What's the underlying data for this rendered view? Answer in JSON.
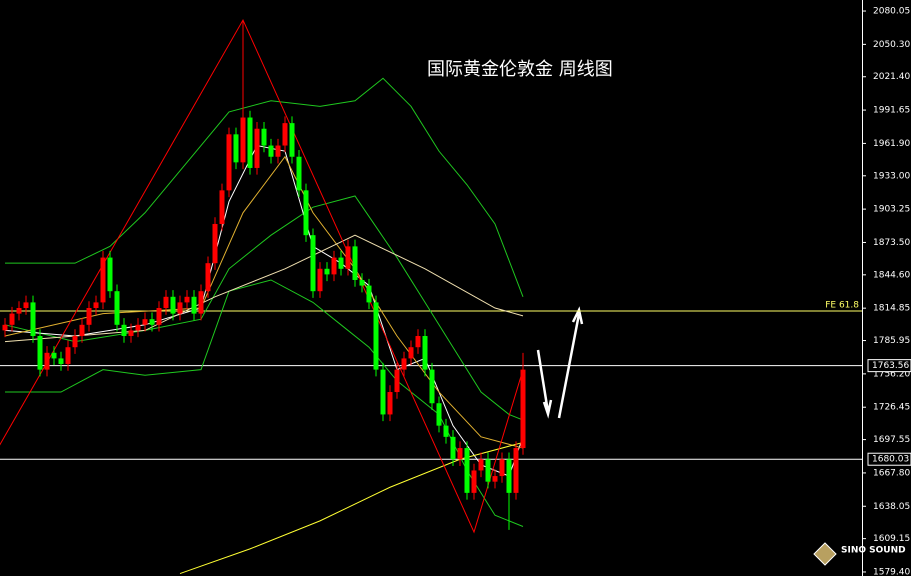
{
  "chart_data": {
    "type": "candlestick",
    "title": "国际黄金伦敦金 周线图",
    "logo": "SINO SOUND",
    "ylim": [
      1575.8,
      2089.9
    ],
    "yticks": [
      2080.05,
      {
        "value": 2050.3,
        "label": "2050.30"
      },
      {
        "value": 2021.4,
        "label": "2021.40"
      },
      1991.65,
      {
        "value": 1961.9,
        "label": "1961.90"
      },
      {
        "value": 1933,
        "label": "1933.00"
      },
      1903.25,
      {
        "value": 1873.5,
        "label": "1873.50"
      },
      {
        "value": 1844.6,
        "label": "1844.60"
      },
      1814.85,
      1785.95,
      {
        "value": 1756.2,
        "label": "1756.20"
      },
      1726.45,
      1697.55,
      {
        "value": 1667.8,
        "label": "1667.80"
      },
      1638.05,
      1609.15,
      {
        "value": 1579.4,
        "label": "1579.40"
      }
    ],
    "up_color": "#ff0000",
    "down_color": "#00ff00",
    "candles": {
      "open": [
        1795,
        1800,
        1810,
        1815,
        1820,
        1790,
        1760,
        1775,
        1770,
        1765,
        1780,
        1790,
        1800,
        1815,
        1820,
        1860,
        1830,
        1800,
        1790,
        1795,
        1800,
        1805,
        1800,
        1815,
        1825,
        1810,
        1820,
        1825,
        1810,
        1830,
        1855,
        1890,
        1920,
        1970,
        1945,
        1985,
        1940,
        1975,
        1960,
        1950,
        1960,
        1980,
        1950,
        1920,
        1880,
        1830,
        1850,
        1845,
        1860,
        1850,
        1870,
        1840,
        1835,
        1820,
        1760,
        1720,
        1740,
        1760,
        1770,
        1780,
        1790,
        1760,
        1730,
        1710,
        1700,
        1680,
        1690,
        1650,
        1670,
        1680,
        1660,
        1665,
        1680,
        1650,
        1690
      ],
      "high": [
        1806,
        1816,
        1821,
        1826,
        1826,
        1796,
        1781,
        1781,
        1776,
        1786,
        1796,
        1806,
        1821,
        1826,
        1866,
        1866,
        1836,
        1806,
        1801,
        1806,
        1811,
        1811,
        1821,
        1831,
        1831,
        1826,
        1831,
        1831,
        1836,
        1861,
        1896,
        1926,
        1976,
        1976,
        2072,
        1991,
        1981,
        1981,
        1966,
        1966,
        1986,
        1986,
        1956,
        1926,
        1886,
        1856,
        1856,
        1866,
        1866,
        1876,
        1876,
        1846,
        1841,
        1826,
        1766,
        1746,
        1766,
        1776,
        1786,
        1796,
        1796,
        1766,
        1736,
        1716,
        1706,
        1696,
        1696,
        1676,
        1686,
        1686,
        1671,
        1686,
        1686,
        1696,
        1775
      ],
      "low": [
        1789,
        1794,
        1804,
        1809,
        1784,
        1754,
        1754,
        1764,
        1759,
        1759,
        1774,
        1784,
        1794,
        1809,
        1814,
        1824,
        1794,
        1784,
        1784,
        1789,
        1794,
        1794,
        1794,
        1809,
        1804,
        1804,
        1814,
        1804,
        1804,
        1824,
        1849,
        1884,
        1914,
        1939,
        1939,
        1934,
        1934,
        1954,
        1944,
        1944,
        1954,
        1944,
        1914,
        1874,
        1824,
        1824,
        1839,
        1839,
        1844,
        1844,
        1834,
        1829,
        1814,
        1754,
        1714,
        1714,
        1734,
        1754,
        1764,
        1774,
        1754,
        1724,
        1704,
        1694,
        1674,
        1674,
        1644,
        1644,
        1664,
        1654,
        1654,
        1659,
        1617,
        1644,
        1684
      ],
      "close": [
        1800,
        1810,
        1815,
        1820,
        1790,
        1760,
        1775,
        1770,
        1765,
        1780,
        1790,
        1800,
        1815,
        1820,
        1860,
        1830,
        1800,
        1790,
        1795,
        1800,
        1805,
        1800,
        1815,
        1825,
        1810,
        1820,
        1825,
        1810,
        1830,
        1855,
        1890,
        1920,
        1970,
        1945,
        1985,
        1940,
        1975,
        1960,
        1950,
        1960,
        1980,
        1950,
        1920,
        1880,
        1830,
        1850,
        1845,
        1860,
        1850,
        1870,
        1840,
        1835,
        1820,
        1760,
        1720,
        1740,
        1760,
        1770,
        1780,
        1790,
        1760,
        1730,
        1710,
        1700,
        1680,
        1690,
        1650,
        1670,
        1680,
        1660,
        1665,
        1680,
        1650,
        1690,
        1760
      ]
    },
    "lines": [
      {
        "color": "#1fc71f",
        "x": [
          0,
          10,
          15,
          20,
          28,
          32,
          38,
          45,
          50,
          54,
          58,
          62,
          66,
          70,
          74
        ],
        "values": [
          1855,
          1855,
          1870,
          1900,
          1960,
          1990,
          2000,
          1995,
          2000,
          2020,
          1995,
          1955,
          1925,
          1890,
          1825
        ]
      },
      {
        "color": "#1fc71f",
        "x": [
          0,
          8,
          14,
          20,
          28,
          32,
          38,
          44,
          48,
          52,
          56,
          62,
          66,
          70,
          74
        ],
        "values": [
          1740,
          1740,
          1760,
          1755,
          1760,
          1830,
          1840,
          1820,
          1800,
          1780,
          1750,
          1720,
          1670,
          1630,
          1620
        ]
      },
      {
        "color": "#1fc71f",
        "x": [
          0,
          10,
          20,
          28,
          32,
          38,
          44,
          50,
          56,
          60,
          64,
          68,
          72,
          74
        ],
        "values": [
          1800,
          1785,
          1795,
          1805,
          1850,
          1880,
          1905,
          1915,
          1860,
          1820,
          1780,
          1740,
          1720,
          1715
        ]
      },
      {
        "color": "#ffffff",
        "x": [
          0,
          10,
          20,
          28,
          32,
          36,
          40,
          44,
          48,
          52,
          56,
          60,
          64,
          68,
          72,
          74
        ],
        "values": [
          1795,
          1790,
          1800,
          1815,
          1910,
          1960,
          1955,
          1870,
          1855,
          1835,
          1760,
          1770,
          1710,
          1675,
          1665,
          1700
        ]
      },
      {
        "color": "#e0b030",
        "x": [
          0,
          14,
          28,
          34,
          40,
          44,
          50,
          56,
          62,
          68,
          74
        ],
        "values": [
          1790,
          1810,
          1815,
          1900,
          1950,
          1900,
          1850,
          1790,
          1740,
          1700,
          1690
        ]
      },
      {
        "color": "#f0e0b0",
        "x": [
          0,
          20,
          30,
          40,
          50,
          60,
          70,
          74
        ],
        "values": [
          1785,
          1795,
          1825,
          1850,
          1880,
          1850,
          1815,
          1808
        ]
      },
      {
        "color": "#ffff33",
        "x": [
          25,
          35,
          45,
          55,
          65,
          74
        ],
        "values": [
          1578,
          1600,
          1625,
          1655,
          1680,
          1695
        ]
      },
      {
        "color": "#ff0000",
        "x": [
          -1,
          34,
          67,
          74
        ],
        "values": [
          1690,
          2072,
          1615,
          1760
        ]
      }
    ],
    "price_lines": [
      1763.56,
      1680.03
    ],
    "fe_line": {
      "value": 1812.3,
      "label": "FE 61.8"
    }
  }
}
